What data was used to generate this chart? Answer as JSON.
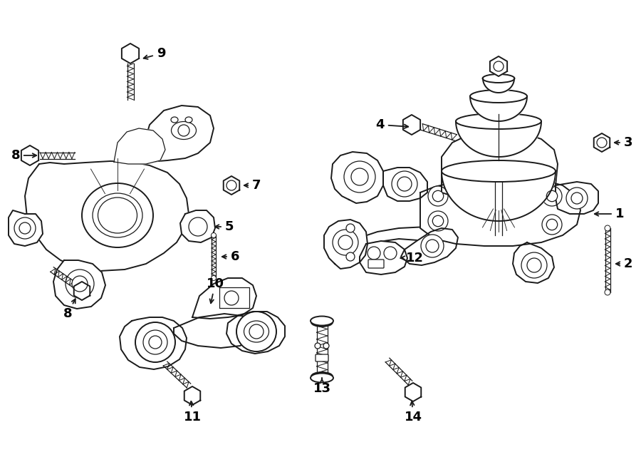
{
  "background_color": "#ffffff",
  "line_color": "#1a1a1a",
  "figsize": [
    9.0,
    6.62
  ],
  "dpi": 100,
  "lw_main": 1.4,
  "lw_thin": 0.9,
  "lw_thick": 2.0
}
